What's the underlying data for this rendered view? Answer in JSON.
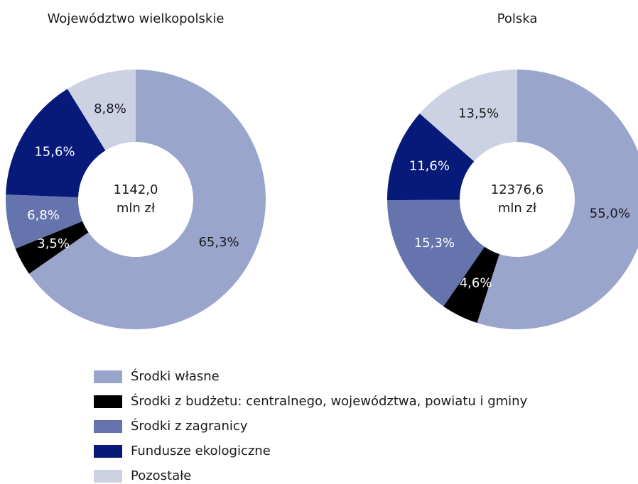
{
  "legend": {
    "categories": [
      "Środki własne",
      "Środki z budżetu: centralnego, województwa, powiatu i gminy",
      "Środki z zagranicy",
      "Fundusze ekologiczne",
      "Pozostałe"
    ],
    "colors": [
      "#9aa5cc",
      "#000000",
      "#6574ad",
      "#071a7a",
      "#ccd1e4"
    ]
  },
  "chart_data": [
    {
      "type": "pie",
      "title": "Województwo wielkopolskie",
      "center_label": [
        "1142,0",
        "mln zł"
      ],
      "values": [
        65.3,
        3.5,
        6.8,
        15.6,
        8.8
      ],
      "value_labels": [
        "65,3%",
        "3,5%",
        "6,8%",
        "15,6%",
        "8,8%"
      ]
    },
    {
      "type": "pie",
      "title": "Polska",
      "center_label": [
        "12376,6",
        "mln zł"
      ],
      "values": [
        55.0,
        4.6,
        15.3,
        11.6,
        13.5
      ],
      "value_labels": [
        "55,0%",
        "4,6%",
        "15,3%",
        "11,6%",
        "13,5%"
      ]
    }
  ]
}
